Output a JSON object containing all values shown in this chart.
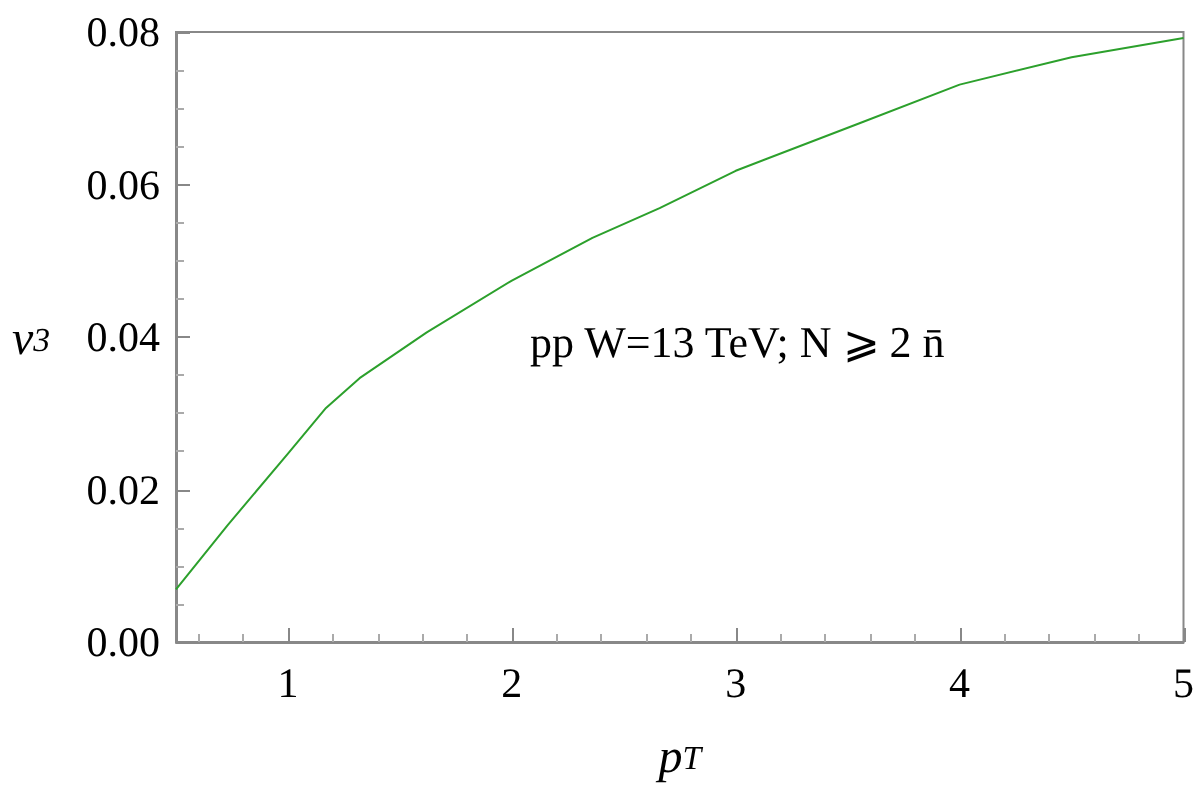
{
  "chart_data": {
    "type": "line",
    "xlabel": "p$_{T}$",
    "ylabel": "v$_{3}$",
    "annotations": [
      "pp W=13 TeV; N ⩾ 2 n̄"
    ],
    "series": [
      {
        "color": "#2ca02c",
        "x": [
          0.5,
          0.73,
          1.0,
          1.17,
          1.32,
          1.62,
          2.0,
          2.36,
          2.66,
          3.0,
          3.55,
          4.0,
          4.5,
          5.0
        ],
        "values": [
          0.0069,
          0.0153,
          0.0247,
          0.0307,
          0.0346,
          0.0406,
          0.0474,
          0.053,
          0.0569,
          0.0618,
          0.068,
          0.0731,
          0.0767,
          0.0792
        ]
      }
    ],
    "xlim": [
      0.5,
      5
    ],
    "xticks": [
      1,
      2,
      3,
      4,
      5
    ],
    "ylim": [
      0,
      0.08
    ],
    "yticks": [
      {
        "value": 0,
        "label": "0.00"
      },
      {
        "value": 0.02,
        "label": "0.02"
      },
      {
        "value": 0.04,
        "label": "0.04"
      },
      {
        "value": 0.06,
        "label": "0.06"
      },
      {
        "value": 0.08,
        "label": "0.08"
      }
    ],
    "grid": false,
    "marker": "none",
    "line_style": "solid"
  }
}
